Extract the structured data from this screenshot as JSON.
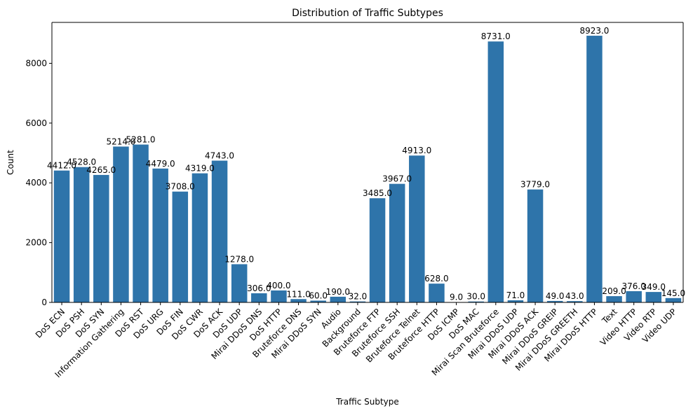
{
  "chart_data": {
    "type": "bar",
    "title": "Distribution of Traffic Subtypes",
    "xlabel": "Traffic Subtype",
    "ylabel": "Count",
    "ylim": [
      0,
      9369
    ],
    "yticks": [
      0,
      2000,
      4000,
      6000,
      8000
    ],
    "grid": false,
    "bar_color": "#2e74aa",
    "categories": [
      "DoS ECN",
      "DoS PSH",
      "DoS SYN",
      "Information Gathering",
      "DoS RST",
      "DoS URG",
      "DoS FIN",
      "DoS CWR",
      "DoS ACK",
      "DoS UDP",
      "Mirai DDoS DNS",
      "DoS HTTP",
      "Bruteforce DNS",
      "Mirai DDoS SYN",
      "Audio",
      "Background",
      "Bruteforce FTP",
      "Bruteforce SSH",
      "Bruteforce Telnet",
      "Bruteforce HTTP",
      "DoS ICMP",
      "DoS MAC",
      "Mirai Scan Bruteforce",
      "Mirai DDoS UDP",
      "Mirai DDoS ACK",
      "Mirai DDoS GREIP",
      "Mirai DDoS GREETH",
      "Mirai DDoS HTTP",
      "Text",
      "Video HTTP",
      "Video RTP",
      "Video UDP"
    ],
    "values": [
      4412,
      4528,
      4265,
      5214,
      5281,
      4479,
      3708,
      4319,
      4743,
      1278,
      306,
      400,
      111,
      60,
      190,
      32,
      3485,
      3967,
      4913,
      628,
      9,
      30,
      8731,
      71,
      3779,
      49,
      43,
      8923,
      209,
      376,
      349,
      145
    ],
    "data_labels": [
      "4412.0",
      "4528.0",
      "4265.0",
      "5214.0",
      "5281.0",
      "4479.0",
      "3708.0",
      "4319.0",
      "4743.0",
      "1278.0",
      "306.0",
      "400.0",
      "111.0",
      "60.0",
      "190.0",
      "32.0",
      "3485.0",
      "3967.0",
      "4913.0",
      "628.0",
      "9.0",
      "30.0",
      "8731.0",
      "71.0",
      "3779.0",
      "49.0",
      "43.0",
      "8923.0",
      "209.0",
      "376.0",
      "349.0",
      "145.0"
    ]
  }
}
